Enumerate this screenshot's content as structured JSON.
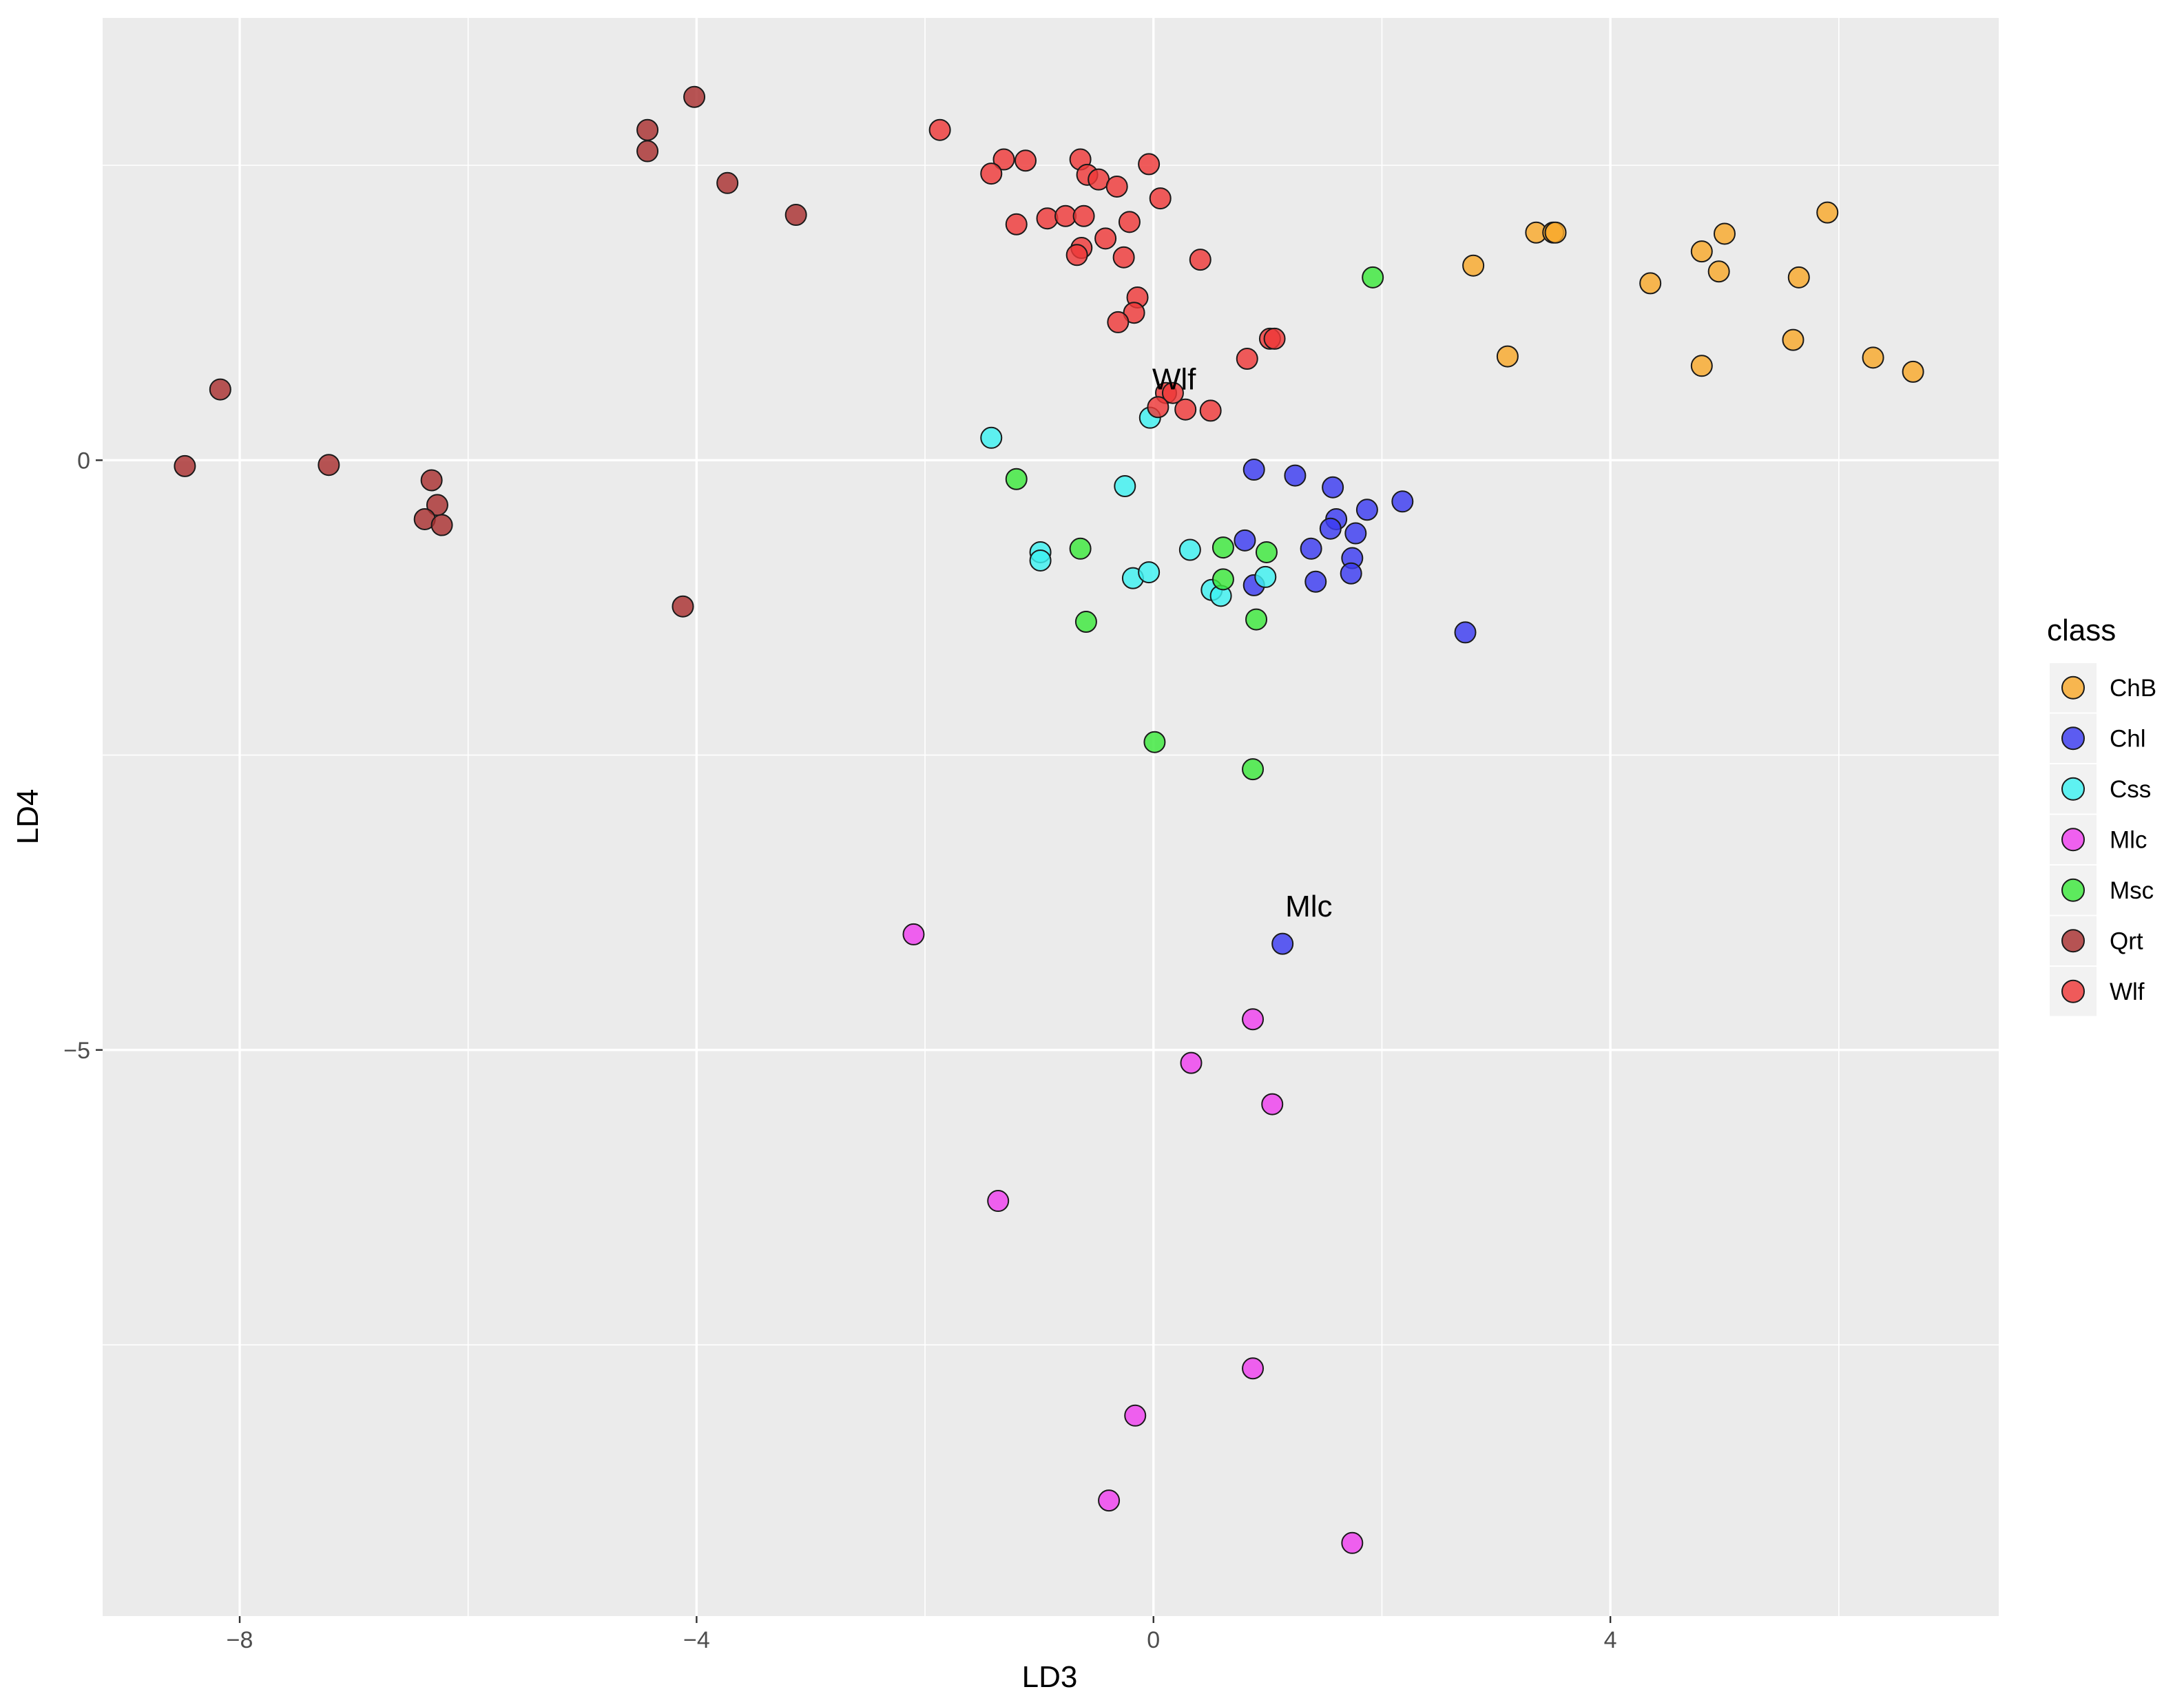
{
  "chart_data": {
    "type": "scatter",
    "title": "",
    "xlabel": "LD3",
    "ylabel": "LD4",
    "xlim": [
      -9.2,
      7.4
    ],
    "ylim": [
      -9.8,
      3.75
    ],
    "x_ticks": [
      -8,
      -4,
      0,
      4
    ],
    "y_ticks": [
      0,
      -5
    ],
    "x_minor_ticks": [
      -6,
      -2,
      2,
      6
    ],
    "y_minor_ticks": [
      2.5,
      -2.5,
      -7.5
    ],
    "grid": true,
    "legend_title": "class",
    "legend_position": "right",
    "series": [
      {
        "name": "ChB",
        "color": "#F8A82B",
        "points": [
          [
            3.35,
            1.93
          ],
          [
            3.5,
            1.93
          ],
          [
            3.52,
            1.93
          ],
          [
            2.8,
            1.65
          ],
          [
            4.35,
            1.5
          ],
          [
            4.8,
            1.77
          ],
          [
            4.95,
            1.6
          ],
          [
            5.0,
            1.92
          ],
          [
            5.9,
            2.1
          ],
          [
            5.65,
            1.55
          ],
          [
            3.1,
            0.88
          ],
          [
            4.8,
            0.8
          ],
          [
            5.6,
            1.02
          ],
          [
            6.3,
            0.87
          ],
          [
            6.65,
            0.75
          ]
        ]
      },
      {
        "name": "Chl",
        "color": "#3B3BF0",
        "points": [
          [
            0.88,
            -0.08
          ],
          [
            1.24,
            -0.13
          ],
          [
            1.57,
            -0.23
          ],
          [
            1.87,
            -0.42
          ],
          [
            2.18,
            -0.35
          ],
          [
            1.6,
            -0.5
          ],
          [
            1.55,
            -0.58
          ],
          [
            1.38,
            -0.75
          ],
          [
            1.77,
            -0.62
          ],
          [
            0.8,
            -0.68
          ],
          [
            1.74,
            -0.83
          ],
          [
            1.73,
            -0.96
          ],
          [
            1.42,
            -1.03
          ],
          [
            0.88,
            -1.06
          ],
          [
            2.73,
            -1.46
          ],
          [
            1.13,
            -4.1
          ]
        ]
      },
      {
        "name": "Css",
        "color": "#3DF0F0",
        "points": [
          [
            -1.42,
            0.19
          ],
          [
            -0.03,
            0.36
          ],
          [
            -0.25,
            -0.22
          ],
          [
            -0.99,
            -0.78
          ],
          [
            -0.99,
            -0.85
          ],
          [
            -0.18,
            -1.0
          ],
          [
            -0.04,
            -0.95
          ],
          [
            0.32,
            -0.76
          ],
          [
            0.98,
            -0.99
          ],
          [
            0.51,
            -1.1
          ],
          [
            0.59,
            -1.15
          ]
        ]
      },
      {
        "name": "Mlc",
        "color": "#EE40EE",
        "points": [
          [
            -2.1,
            -4.02
          ],
          [
            0.87,
            -4.74
          ],
          [
            0.33,
            -5.11
          ],
          [
            1.04,
            -5.46
          ],
          [
            -1.36,
            -6.28
          ],
          [
            0.87,
            -7.7
          ],
          [
            -0.16,
            -8.1
          ],
          [
            -0.39,
            -8.82
          ],
          [
            1.74,
            -9.18
          ]
        ]
      },
      {
        "name": "Msc",
        "color": "#3CE83C",
        "points": [
          [
            1.92,
            1.55
          ],
          [
            -1.2,
            -0.16
          ],
          [
            -0.64,
            -0.75
          ],
          [
            0.61,
            -0.74
          ],
          [
            0.99,
            -0.78
          ],
          [
            0.61,
            -1.01
          ],
          [
            -0.59,
            -1.37
          ],
          [
            0.9,
            -1.35
          ],
          [
            0.01,
            -2.39
          ],
          [
            0.87,
            -2.62
          ]
        ]
      },
      {
        "name": "Qrt",
        "color": "#A83030",
        "points": [
          [
            -4.02,
            3.08
          ],
          [
            -4.43,
            2.8
          ],
          [
            -4.43,
            2.62
          ],
          [
            -3.73,
            2.35
          ],
          [
            -3.13,
            2.08
          ],
          [
            -8.17,
            0.6
          ],
          [
            -8.48,
            -0.05
          ],
          [
            -7.22,
            -0.04
          ],
          [
            -6.32,
            -0.17
          ],
          [
            -6.27,
            -0.38
          ],
          [
            -6.38,
            -0.5
          ],
          [
            -6.23,
            -0.55
          ],
          [
            -4.12,
            -1.24
          ]
        ]
      },
      {
        "name": "Wlf",
        "color": "#EE3838",
        "points": [
          [
            -1.87,
            2.8
          ],
          [
            -1.31,
            2.55
          ],
          [
            -1.12,
            2.54
          ],
          [
            -0.64,
            2.55
          ],
          [
            -0.04,
            2.51
          ],
          [
            -1.42,
            2.43
          ],
          [
            -0.58,
            2.42
          ],
          [
            -0.48,
            2.38
          ],
          [
            -0.32,
            2.32
          ],
          [
            0.06,
            2.22
          ],
          [
            -1.2,
            2.0
          ],
          [
            -0.93,
            2.05
          ],
          [
            -0.77,
            2.07
          ],
          [
            -0.61,
            2.07
          ],
          [
            -0.21,
            2.02
          ],
          [
            -0.42,
            1.88
          ],
          [
            -0.63,
            1.8
          ],
          [
            -0.67,
            1.74
          ],
          [
            -0.26,
            1.72
          ],
          [
            0.41,
            1.7
          ],
          [
            -0.14,
            1.38
          ],
          [
            -0.17,
            1.25
          ],
          [
            -0.31,
            1.17
          ],
          [
            1.02,
            1.03
          ],
          [
            1.06,
            1.03
          ],
          [
            0.82,
            0.86
          ],
          [
            0.11,
            0.57
          ],
          [
            0.17,
            0.57
          ],
          [
            0.04,
            0.45
          ],
          [
            0.28,
            0.43
          ],
          [
            0.5,
            0.42
          ]
        ]
      }
    ],
    "annotations": [
      {
        "text": "Wlf",
        "x": 0.18,
        "y": 0.6
      },
      {
        "text": "Mlc",
        "x": 1.36,
        "y": -3.87
      }
    ]
  }
}
